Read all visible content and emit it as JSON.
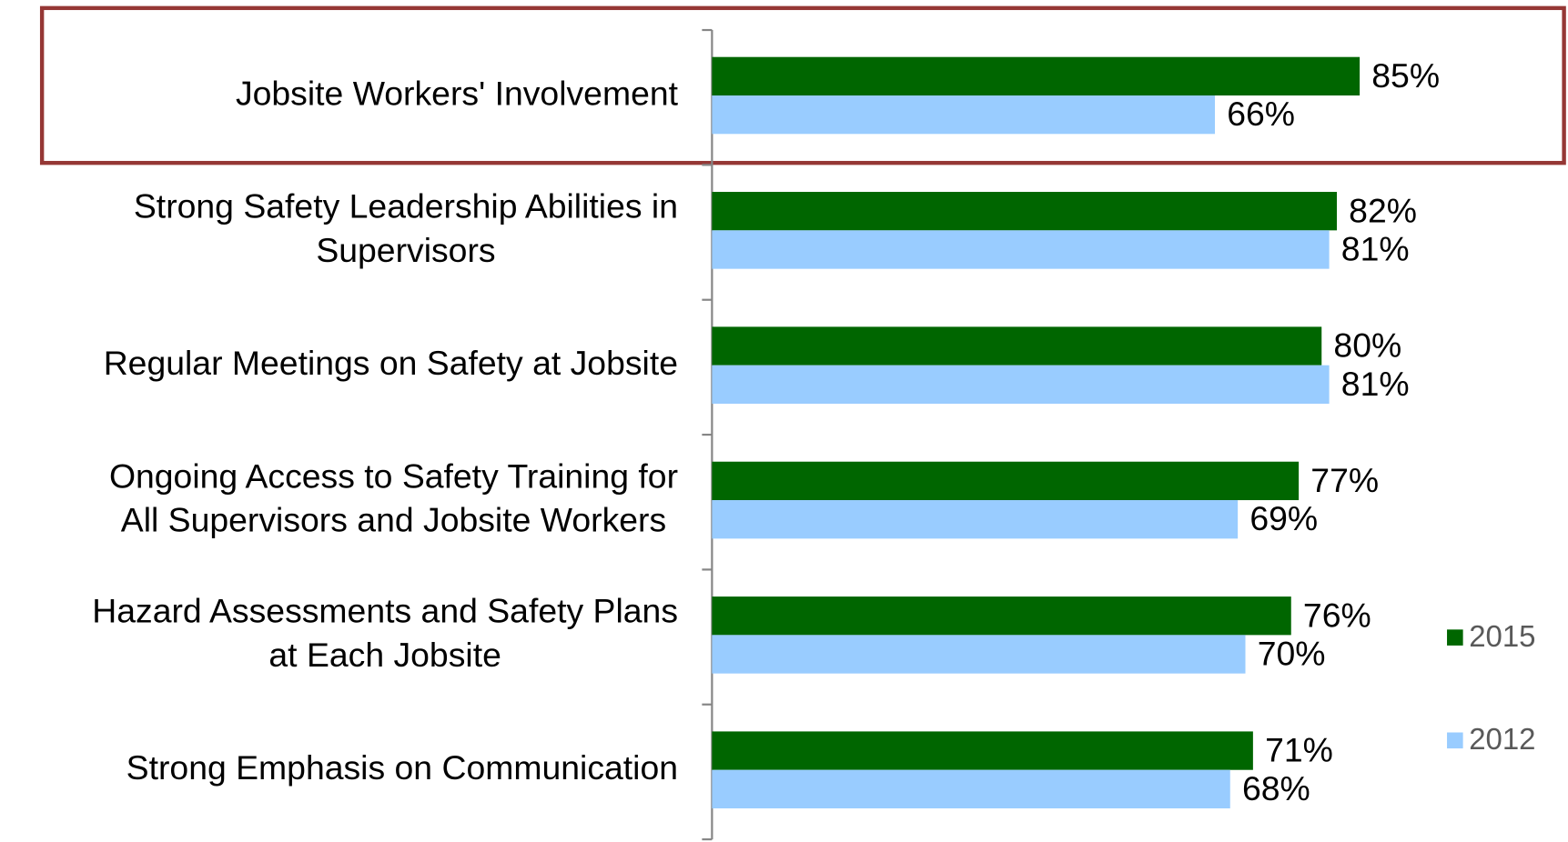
{
  "chart_data": {
    "type": "bar",
    "orientation": "horizontal",
    "categories": [
      [
        "Jobsite Workers' Involvement"
      ],
      [
        "Strong Safety Leadership Abilities in",
        "Supervisors"
      ],
      [
        "Regular Meetings on Safety at Jobsite"
      ],
      [
        "Ongoing Access to Safety Training for",
        "All Supervisors and Jobsite Workers"
      ],
      [
        "Hazard Assessments and Safety Plans",
        "at Each Jobsite"
      ],
      [
        "Strong Emphasis on Communication"
      ]
    ],
    "series": [
      {
        "name": "2015",
        "color": "#006600",
        "values": [
          85,
          82,
          80,
          77,
          76,
          71
        ],
        "value_labels": [
          "85%",
          "82%",
          "80%",
          "77%",
          "76%",
          "71%"
        ]
      },
      {
        "name": "2012",
        "color": "#99ccff",
        "values": [
          66,
          81,
          81,
          69,
          70,
          68
        ],
        "value_labels": [
          "66%",
          "81%",
          "81%",
          "69%",
          "70%",
          "68%"
        ]
      }
    ],
    "xlim": [
      0,
      100
    ],
    "legend": "right"
  }
}
